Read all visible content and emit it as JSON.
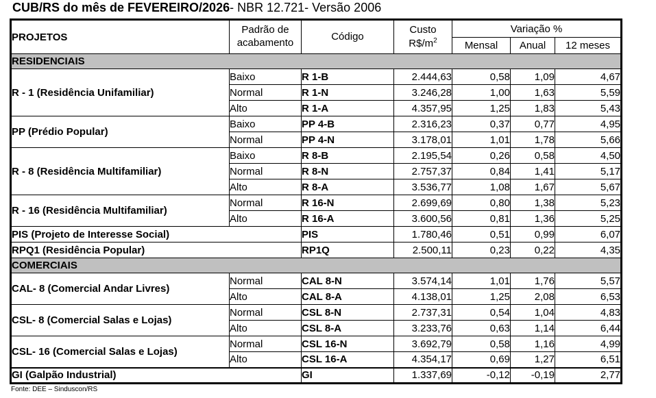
{
  "title": {
    "bold": "CUB/RS do mês de FEVEREIRO/2026",
    "regular": "- NBR 12.721- Versão 2006"
  },
  "header": {
    "projetos": "PROJETOS",
    "padrao_line1": "Padrão de",
    "padrao_line2": "acabamento",
    "codigo": "Código",
    "custo_line1": "Custo",
    "custo_line2_base": "R$/m",
    "custo_line2_sup": "2",
    "variacao": "Variação %",
    "mensal": "Mensal",
    "anual": "Anual",
    "meses12": "12 meses"
  },
  "sections": [
    {
      "name": "RESIDENCIAIS",
      "groups": [
        {
          "label": "R - 1 (Residência Unifamiliar)",
          "rows": [
            {
              "padrao": "Baixo",
              "codigo": "R 1-B",
              "custo": "2.444,63",
              "mensal": "0,58",
              "anual": "1,09",
              "meses12": "4,67"
            },
            {
              "padrao": "Normal",
              "codigo": "R 1-N",
              "custo": "3.246,28",
              "mensal": "1,00",
              "anual": "1,63",
              "meses12": "5,59"
            },
            {
              "padrao": "Alto",
              "codigo": "R 1-A",
              "custo": "4.357,95",
              "mensal": "1,25",
              "anual": "1,83",
              "meses12": "5,43"
            }
          ]
        },
        {
          "label": "PP (Prédio Popular)",
          "rows": [
            {
              "padrao": "Baixo",
              "codigo": "PP 4-B",
              "custo": "2.316,23",
              "mensal": "0,37",
              "anual": "0,77",
              "meses12": "4,95"
            },
            {
              "padrao": "Normal",
              "codigo": "PP 4-N",
              "custo": "3.178,01",
              "mensal": "1,01",
              "anual": "1,78",
              "meses12": "5,66"
            }
          ]
        },
        {
          "label": "R - 8 (Residência Multifamiliar)",
          "rows": [
            {
              "padrao": "Baixo",
              "codigo": "R 8-B",
              "custo": "2.195,54",
              "mensal": "0,26",
              "anual": "0,58",
              "meses12": "4,50"
            },
            {
              "padrao": "Normal",
              "codigo": "R 8-N",
              "custo": "2.757,37",
              "mensal": "0,84",
              "anual": "1,41",
              "meses12": "5,17"
            },
            {
              "padrao": "Alto",
              "codigo": "R 8-A",
              "custo": "3.536,77",
              "mensal": "1,08",
              "anual": "1,67",
              "meses12": "5,67"
            }
          ]
        },
        {
          "label": "R - 16 (Residência Multifamiliar)",
          "rows": [
            {
              "padrao": "Normal",
              "codigo": "R 16-N",
              "custo": "2.699,69",
              "mensal": "0,80",
              "anual": "1,38",
              "meses12": "5,23"
            },
            {
              "padrao": "Alto",
              "codigo": "R 16-A",
              "custo": "3.600,56",
              "mensal": "0,81",
              "anual": "1,36",
              "meses12": "5,25"
            }
          ]
        },
        {
          "label": "PIS (Projeto de Interesse Social)",
          "rows": [
            {
              "padrao": null,
              "codigo": "PIS",
              "custo": "1.780,46",
              "mensal": "0,51",
              "anual": "0,99",
              "meses12": "6,07"
            }
          ]
        },
        {
          "label": "RPQ1 (Residência Popular)",
          "rows": [
            {
              "padrao": null,
              "codigo": "RP1Q",
              "custo": "2.500,11",
              "mensal": "0,23",
              "anual": "0,22",
              "meses12": "4,35"
            }
          ]
        }
      ]
    },
    {
      "name": "COMERCIAIS",
      "groups": [
        {
          "label": "CAL- 8 (Comercial Andar Livres)",
          "rows": [
            {
              "padrao": "Normal",
              "codigo": "CAL 8-N",
              "custo": "3.574,14",
              "mensal": "1,01",
              "anual": "1,76",
              "meses12": "5,57"
            },
            {
              "padrao": "Alto",
              "codigo": "CAL 8-A",
              "custo": "4.138,01",
              "mensal": "1,25",
              "anual": "2,08",
              "meses12": "6,53"
            }
          ]
        },
        {
          "label": "CSL- 8 (Comercial Salas e Lojas)",
          "rows": [
            {
              "padrao": "Normal",
              "codigo": "CSL 8-N",
              "custo": "2.737,31",
              "mensal": "0,54",
              "anual": "1,04",
              "meses12": "4,83"
            },
            {
              "padrao": "Alto",
              "codigo": "CSL 8-A",
              "custo": "3.233,76",
              "mensal": "0,63",
              "anual": "1,14",
              "meses12": "6,44"
            }
          ]
        },
        {
          "label": "CSL- 16 (Comercial Salas e Lojas)",
          "rows": [
            {
              "padrao": "Normal",
              "codigo": "CSL 16-N",
              "custo": "3.692,79",
              "mensal": "0,58",
              "anual": "1,16",
              "meses12": "4,99"
            },
            {
              "padrao": "Alto",
              "codigo": "CSL 16-A",
              "custo": "4.354,17",
              "mensal": "0,69",
              "anual": "1,27",
              "meses12": "6,51"
            }
          ]
        },
        {
          "label": "GI (Galpão Industrial)",
          "rows": [
            {
              "padrao": null,
              "codigo": "GI",
              "custo": "1.337,69",
              "mensal": "-0,12",
              "anual": "-0,19",
              "meses12": "2,77"
            }
          ]
        }
      ]
    }
  ],
  "footer": {
    "fonte": "Fonte: DEE – Sinduscon/RS"
  }
}
